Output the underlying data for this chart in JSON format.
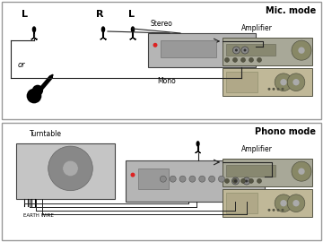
{
  "title_mic": "Mic. mode",
  "title_phono": "Phono mode",
  "label_stereo": "Stereo",
  "label_mono": "Mono",
  "label_amplifier1": "Amplifier",
  "label_amplifier2": "Amplifier",
  "label_turntable": "Turntable",
  "label_or": "or",
  "label_L1": "L",
  "label_R": "R",
  "label_L2": "L",
  "label_earthwire": "EARTH WIRE",
  "device_gray": "#b8b8b8",
  "device_dark": "#888888",
  "amp_top_color": "#a8a898",
  "amp_bot_color": "#c0b898",
  "amp_display": "#888870",
  "amp_knob": "#666655",
  "text_color": "#111111",
  "line_color": "#222222",
  "bg": "#ffffff",
  "panel_edge": "#999999"
}
